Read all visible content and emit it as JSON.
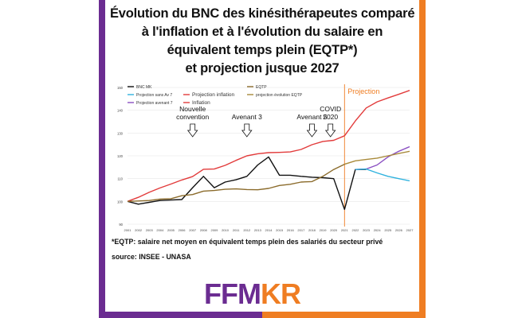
{
  "colors": {
    "purple": "#6b2c91",
    "orange": "#ef7d22",
    "bnc": "#111111",
    "proj_av7": "#8a4fc2",
    "proj_sans": "#2fb2de",
    "inflation": "#e23b3b",
    "proj_inflation": "#e23b3b",
    "eqtp": "#8b6b2b",
    "proj_eqtp": "#a88a3a",
    "covid_line": "#ef7d22"
  },
  "title_lines": [
    "Évolution du BNC des kinésithérapeutes comparé",
    "à l'inflation et à l'évolution du salaire en",
    "équivalent temps plein (EQTP*)",
    "et projection jusque 2027"
  ],
  "footnote": "*EQTP: salaire net moyen en équivalent temps plein des salariés du secteur privé",
  "source": "source: INSEE - UNASA",
  "logo": {
    "part1": "FFM",
    "part2": "KR"
  },
  "chart_data": {
    "type": "line",
    "x": [
      "2001",
      "2002",
      "2003",
      "2004",
      "2005",
      "2006",
      "2007",
      "2008",
      "2009",
      "2010",
      "2011",
      "2012",
      "2013",
      "2014",
      "2015",
      "2016",
      "2017",
      "2018",
      "2019",
      "2020",
      "2021",
      "2022",
      "2023",
      "2024",
      "2025",
      "2026",
      "2027"
    ],
    "ylim": [
      90,
      150
    ],
    "yticks": [
      90,
      100,
      110,
      120,
      130,
      140,
      150
    ],
    "series": [
      {
        "name": "BNC MK",
        "color_key": "bnc",
        "values": [
          100,
          98.8,
          99.6,
          100.4,
          100.6,
          100.8,
          106,
          111,
          106,
          108.5,
          109.5,
          111,
          116,
          119.5,
          111.5,
          111.5,
          111,
          110.6,
          110.4,
          110,
          96.5,
          114,
          114,
          null,
          null,
          null,
          null
        ]
      },
      {
        "name": "Projection avenant 7",
        "color_key": "proj_av7",
        "values": [
          null,
          null,
          null,
          null,
          null,
          null,
          null,
          null,
          null,
          null,
          null,
          null,
          null,
          null,
          null,
          null,
          null,
          null,
          null,
          null,
          null,
          114,
          114.2,
          116,
          119.5,
          122,
          124
        ]
      },
      {
        "name": "Projection sans Av 7",
        "color_key": "proj_sans",
        "values": [
          null,
          null,
          null,
          null,
          null,
          null,
          null,
          null,
          null,
          null,
          null,
          null,
          null,
          null,
          null,
          null,
          null,
          null,
          null,
          null,
          null,
          114,
          114.2,
          112.5,
          111,
          110,
          109
        ]
      },
      {
        "name": "Inflation",
        "color_key": "inflation",
        "values": [
          100,
          101.8,
          104,
          105.9,
          107.6,
          109.4,
          110.9,
          114.1,
          114.2,
          115.8,
          118,
          120,
          120.9,
          121.4,
          121.5,
          121.7,
          122.8,
          124.9,
          126.3,
          126.8,
          128.8,
          null,
          null,
          null,
          null,
          null,
          null
        ]
      },
      {
        "name": "Projection inflation",
        "color_key": "proj_inflation",
        "values": [
          null,
          null,
          null,
          null,
          null,
          null,
          null,
          null,
          null,
          null,
          null,
          null,
          null,
          null,
          null,
          null,
          null,
          null,
          null,
          null,
          128.8,
          135.3,
          141,
          143.7,
          145.4,
          147,
          148.7
        ]
      },
      {
        "name": "EQTP",
        "color_key": "eqtp",
        "values": [
          100,
          100.2,
          100.4,
          101,
          101.2,
          102.5,
          103,
          104.5,
          104.8,
          105.3,
          105.5,
          105.2,
          105.1,
          105.7,
          107,
          107.5,
          108.5,
          108.7,
          111,
          114,
          116.3,
          null,
          null,
          null,
          null,
          null,
          null
        ]
      },
      {
        "name": "projection évolution EQTP",
        "color_key": "proj_eqtp",
        "values": [
          null,
          null,
          null,
          null,
          null,
          null,
          null,
          null,
          null,
          null,
          null,
          null,
          null,
          null,
          null,
          null,
          null,
          null,
          null,
          null,
          116.3,
          117.8,
          118.4,
          119,
          120,
          121,
          122
        ]
      }
    ],
    "annotations": [
      {
        "lines": [
          "Nouvelle",
          "convention"
        ],
        "x": "2007"
      },
      {
        "lines": [
          "Avenant 3"
        ],
        "x": "2012"
      },
      {
        "lines": [
          "Avenant 5"
        ],
        "x": "2018"
      },
      {
        "lines": [
          "COVID",
          "2020"
        ],
        "x": "2020"
      }
    ],
    "projection_marker": {
      "x": "2021",
      "label": "Projection"
    },
    "legend_position": "top"
  }
}
